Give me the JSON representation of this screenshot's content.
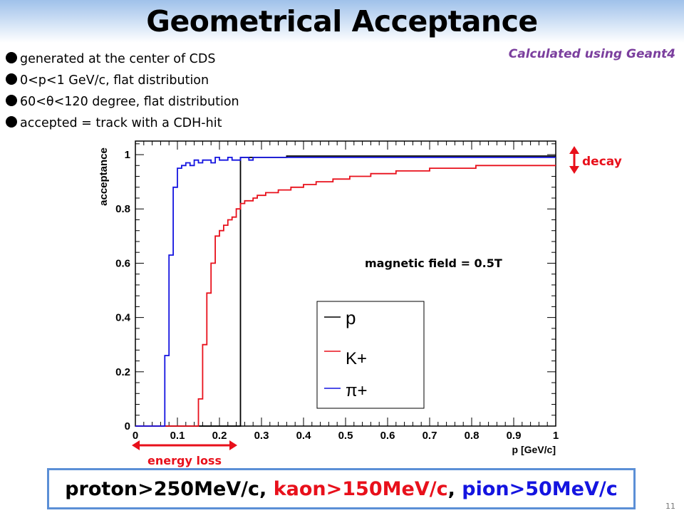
{
  "slide": {
    "title": "Geometrical Acceptance",
    "note": "Calculated using Geant4",
    "page_number": "11",
    "bullets": [
      "generated at the center of CDS",
      "0<p<1 GeV/c, flat distribution",
      "60<θ<120 degree, flat distribution",
      "accepted = track with a CDH-hit"
    ],
    "annotations": {
      "decay": "decay",
      "energy_loss": "energy loss",
      "field": "magnetic field = 0.5T"
    },
    "summary": {
      "proton": "proton>250MeV/c",
      "sep1": ", ",
      "kaon": "kaon>150MeV/c",
      "sep2": ", ",
      "pion": "pion>50MeV/c"
    },
    "colors": {
      "proton": "#000000",
      "kaon": "#e8101b",
      "pion": "#1414e0",
      "arrow": "#e8101b",
      "note": "#7b3f9e",
      "box_border": "#5b8fd6"
    }
  },
  "chart_data": {
    "type": "line",
    "step": true,
    "xlabel": "p [GeV/c]",
    "ylabel": "acceptance",
    "xlim": [
      0,
      1
    ],
    "ylim": [
      0,
      1.05
    ],
    "xticks": [
      "0",
      "0.1",
      "0.2",
      "0.3",
      "0.4",
      "0.5",
      "0.6",
      "0.7",
      "0.8",
      "0.9",
      "1"
    ],
    "yticks": [
      "0",
      "0.2",
      "0.4",
      "0.6",
      "0.8",
      "1"
    ],
    "legend_position": "bottom-center",
    "bin_width": 0.01,
    "series": [
      {
        "name": "p",
        "color": "#000000",
        "values": [
          0,
          0,
          0,
          0,
          0,
          0,
          0,
          0,
          0,
          0,
          0,
          0,
          0,
          0,
          0,
          0,
          0,
          0,
          0,
          0,
          0,
          0,
          0,
          0,
          0,
          0.99,
          0.99,
          0.99,
          0.99,
          0.99,
          0.99,
          0.99,
          0.99,
          0.99,
          0.99,
          0.99,
          0.995,
          0.995,
          0.995,
          0.995,
          0.995,
          0.995,
          0.995,
          0.995,
          0.995,
          0.995,
          0.995,
          0.995,
          0.995,
          0.995,
          0.995,
          0.995,
          0.995,
          0.995,
          0.995,
          0.995,
          0.995,
          0.995,
          0.995,
          0.995,
          0.995,
          0.995,
          0.995,
          0.995,
          0.995,
          0.995,
          0.995,
          0.995,
          0.995,
          0.995,
          0.995,
          0.995,
          0.995,
          0.995,
          0.995,
          0.995,
          0.995,
          0.995,
          0.995,
          0.995,
          0.995,
          0.995,
          0.995,
          0.995,
          0.995,
          0.995,
          0.995,
          0.995,
          0.995,
          0.995,
          0.995,
          0.995,
          0.995,
          0.995,
          0.995,
          0.995,
          0.995,
          0.995,
          0.995,
          0.995
        ]
      },
      {
        "name": "K+",
        "color": "#e8101b",
        "values": [
          0,
          0,
          0,
          0,
          0,
          0,
          0,
          0,
          0,
          0,
          0,
          0,
          0,
          0,
          0,
          0.1,
          0.3,
          0.49,
          0.6,
          0.7,
          0.72,
          0.74,
          0.76,
          0.77,
          0.8,
          0.82,
          0.83,
          0.83,
          0.84,
          0.85,
          0.85,
          0.86,
          0.86,
          0.86,
          0.87,
          0.87,
          0.87,
          0.88,
          0.88,
          0.88,
          0.89,
          0.89,
          0.89,
          0.9,
          0.9,
          0.9,
          0.9,
          0.91,
          0.91,
          0.91,
          0.91,
          0.92,
          0.92,
          0.92,
          0.92,
          0.92,
          0.93,
          0.93,
          0.93,
          0.93,
          0.93,
          0.93,
          0.94,
          0.94,
          0.94,
          0.94,
          0.94,
          0.94,
          0.94,
          0.94,
          0.95,
          0.95,
          0.95,
          0.95,
          0.95,
          0.95,
          0.95,
          0.95,
          0.95,
          0.95,
          0.95,
          0.96,
          0.96,
          0.96,
          0.96,
          0.96,
          0.96,
          0.96,
          0.96,
          0.96,
          0.96,
          0.96,
          0.96,
          0.96,
          0.96,
          0.96,
          0.96,
          0.96,
          0.96,
          0.96
        ]
      },
      {
        "name": "π+",
        "color": "#1414e0",
        "values": [
          0,
          0,
          0,
          0,
          0,
          0,
          0,
          0.26,
          0.63,
          0.88,
          0.95,
          0.96,
          0.97,
          0.96,
          0.98,
          0.97,
          0.98,
          0.98,
          0.97,
          0.99,
          0.98,
          0.98,
          0.99,
          0.98,
          0.98,
          0.99,
          0.99,
          0.98,
          0.99,
          0.99,
          0.99,
          0.99,
          0.99,
          0.99,
          0.99,
          0.99,
          0.99,
          0.99,
          0.99,
          0.99,
          0.99,
          0.99,
          0.99,
          0.99,
          0.99,
          0.99,
          0.99,
          0.99,
          0.99,
          0.99,
          0.99,
          0.99,
          0.99,
          0.99,
          0.99,
          0.99,
          0.99,
          0.99,
          0.99,
          0.99,
          0.99,
          0.99,
          0.99,
          0.99,
          0.99,
          0.99,
          0.99,
          0.99,
          0.99,
          0.99,
          0.99,
          0.99,
          0.99,
          0.99,
          0.99,
          0.99,
          0.99,
          0.99,
          0.99,
          0.99,
          0.99,
          0.99,
          0.99,
          0.99,
          0.99,
          0.99,
          0.99,
          0.99,
          0.99,
          0.99,
          0.99,
          0.99,
          0.99,
          0.99,
          0.99,
          0.99,
          0.99,
          0.99,
          0.99,
          0.99
        ]
      }
    ]
  }
}
